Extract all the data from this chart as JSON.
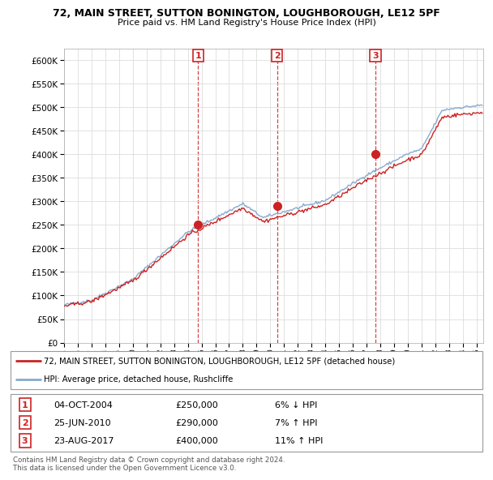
{
  "title1": "72, MAIN STREET, SUTTON BONINGTON, LOUGHBOROUGH, LE12 5PF",
  "title2": "Price paid vs. HM Land Registry's House Price Index (HPI)",
  "legend_line1": "72, MAIN STREET, SUTTON BONINGTON, LOUGHBOROUGH, LE12 5PF (detached house)",
  "legend_line2": "HPI: Average price, detached house, Rushcliffe",
  "footer1": "Contains HM Land Registry data © Crown copyright and database right 2024.",
  "footer2": "This data is licensed under the Open Government Licence v3.0.",
  "transactions": [
    {
      "num": 1,
      "date": "04-OCT-2004",
      "price": "£250,000",
      "change": "6% ↓ HPI"
    },
    {
      "num": 2,
      "date": "25-JUN-2010",
      "price": "£290,000",
      "change": "7% ↑ HPI"
    },
    {
      "num": 3,
      "date": "23-AUG-2017",
      "price": "£400,000",
      "change": "11% ↑ HPI"
    }
  ],
  "transaction_dates": [
    2004.75,
    2010.48,
    2017.64
  ],
  "transaction_prices": [
    250000,
    290000,
    400000
  ],
  "hpi_color": "#88aacc",
  "price_color": "#cc2222",
  "ylim": [
    0,
    625000
  ],
  "xlim_start": 1995,
  "xlim_end": 2025.5,
  "yticks": [
    0,
    50000,
    100000,
    150000,
    200000,
    250000,
    300000,
    350000,
    400000,
    450000,
    500000,
    550000,
    600000
  ],
  "xticks": [
    1995,
    1996,
    1997,
    1998,
    1999,
    2000,
    2001,
    2002,
    2003,
    2004,
    2005,
    2006,
    2007,
    2008,
    2009,
    2010,
    2011,
    2012,
    2013,
    2014,
    2015,
    2016,
    2017,
    2018,
    2019,
    2020,
    2021,
    2022,
    2023,
    2024,
    2025
  ],
  "background_color": "#ffffff",
  "grid_color": "#dddddd"
}
